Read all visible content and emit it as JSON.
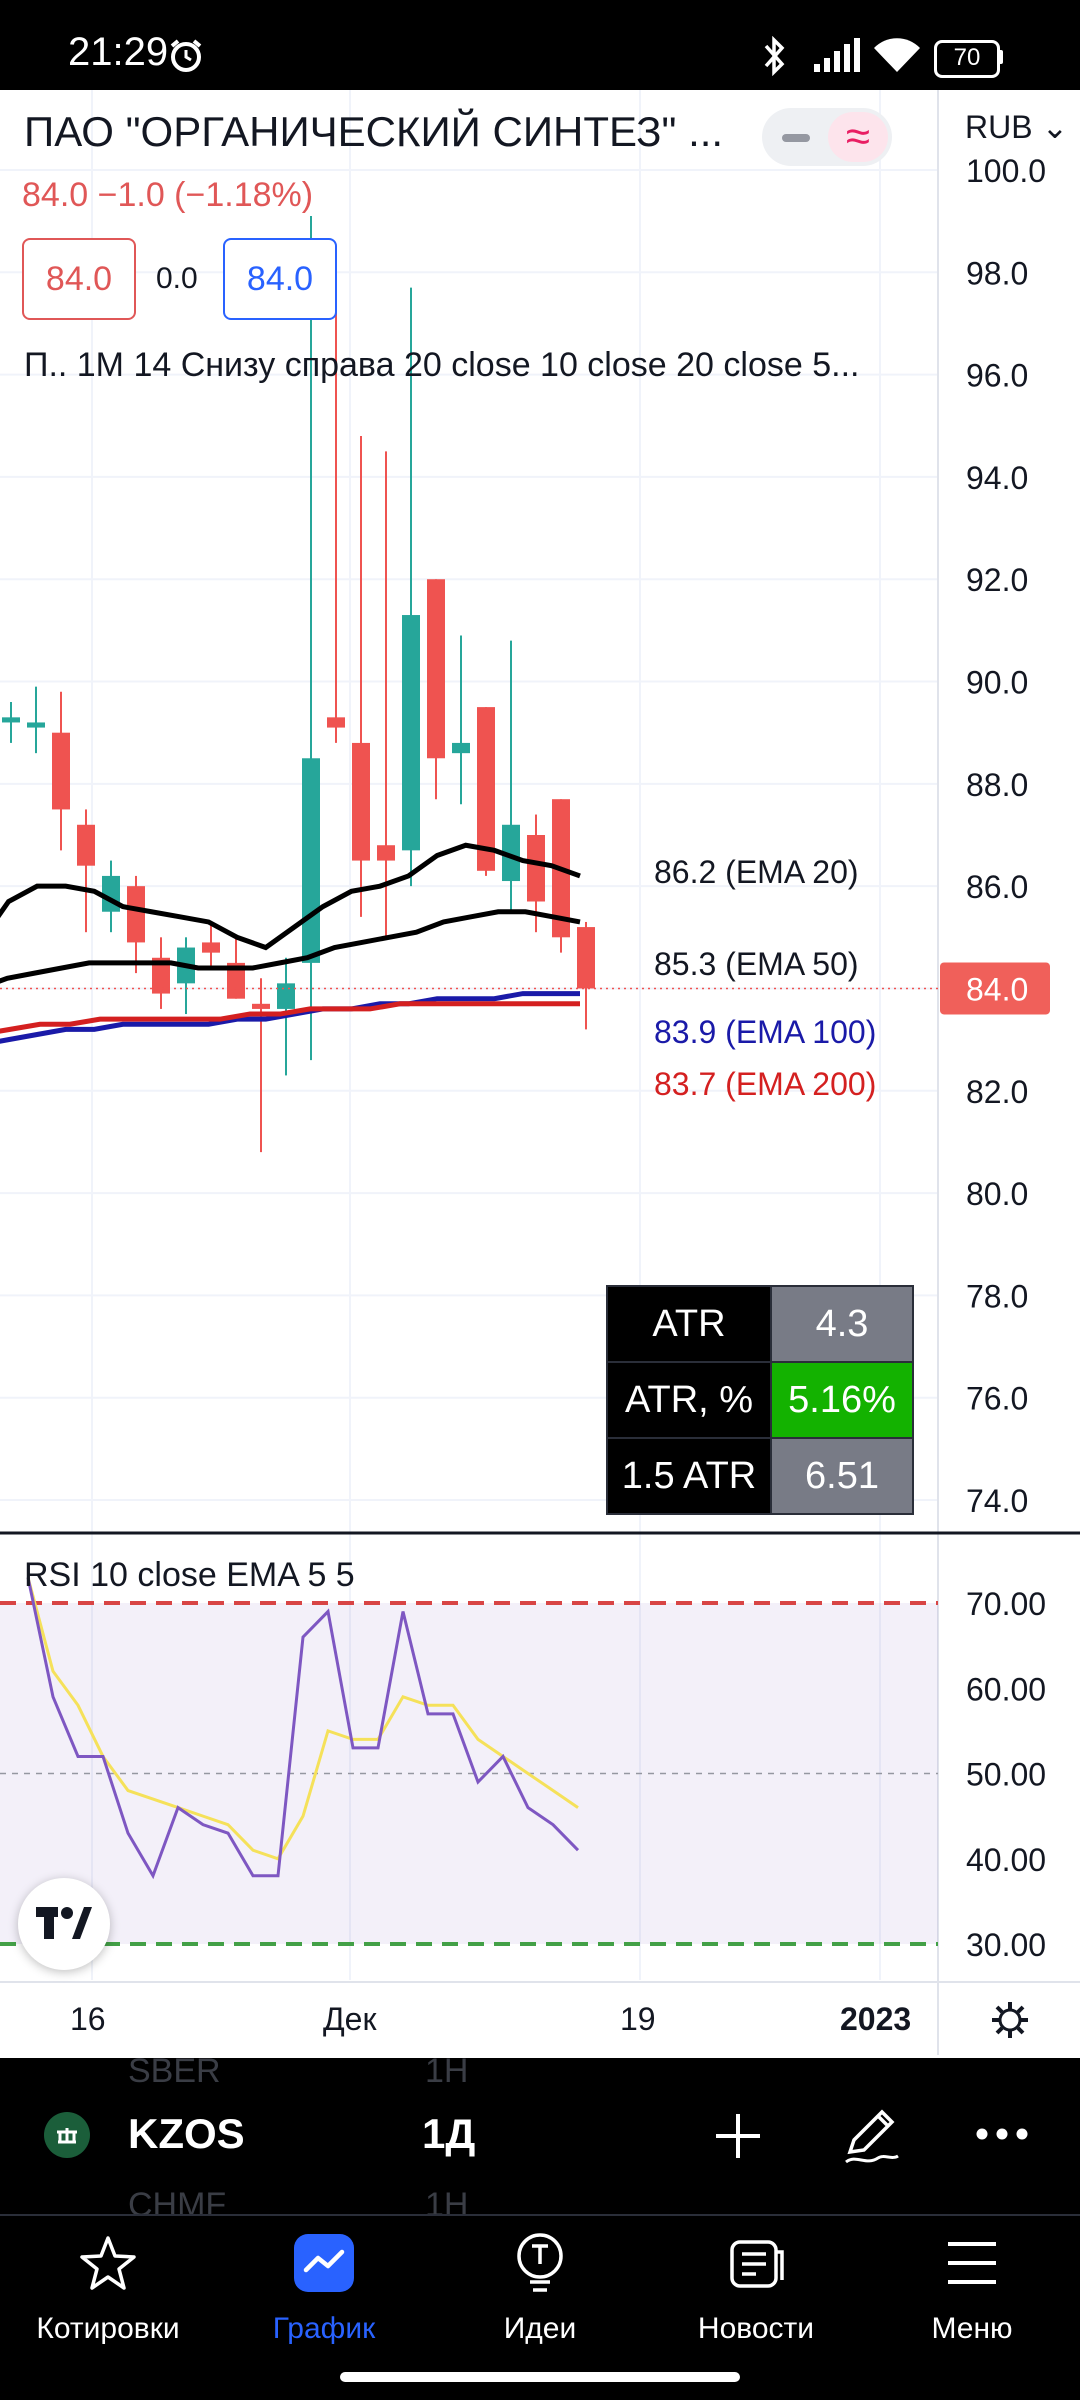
{
  "status_bar": {
    "time": "21:29",
    "battery": "70"
  },
  "header": {
    "title": "ПАО \"ОРГАНИЧЕСКИЙ СИНТЕЗ\" ...",
    "price_change": "84.0  −1.0 (−1.18%)",
    "bid": "84.0",
    "spread": "0.0",
    "ask": "84.0",
    "indicators_line": "П.. 1М 14 Снизу справа 20 close 10 close 20 close 5...",
    "currency": "RUB",
    "currency_caret": "⌄"
  },
  "price_axis": {
    "labels": [
      "100.0",
      "98.0",
      "96.0",
      "94.0",
      "92.0",
      "90.0",
      "88.0",
      "86.0",
      "84.0",
      "82.0",
      "80.0",
      "78.0",
      "76.0",
      "74.0"
    ],
    "last_price": "84.0"
  },
  "ema_labels": [
    {
      "text": "86.2 (EMA 20)",
      "color": "#131722"
    },
    {
      "text": "85.3 (EMA 50)",
      "color": "#131722"
    },
    {
      "text": "83.9 (EMA 100)",
      "color": "#1a1aa8"
    },
    {
      "text": "83.7 (EMA 200)",
      "color": "#d42020"
    }
  ],
  "atr_table": [
    {
      "key": "ATR",
      "value": "4.3",
      "highlight": false
    },
    {
      "key": "ATR, %",
      "value": "5.16%",
      "highlight": true
    },
    {
      "key": "1.5 ATR",
      "value": "6.51",
      "highlight": false
    }
  ],
  "rsi": {
    "title": "RSI 10 close EMA 5 5",
    "axis_labels": [
      "70.00",
      "60.00",
      "50.00",
      "40.00",
      "30.00"
    ],
    "rsi_values": [
      73,
      59,
      52,
      52,
      43,
      38,
      46,
      44,
      43,
      38,
      38,
      66,
      69,
      53,
      53,
      69,
      57,
      57,
      49,
      52,
      46,
      44,
      41
    ],
    "ema_values": [
      73,
      62,
      58,
      52,
      48,
      47,
      46,
      45,
      44,
      41,
      40,
      45,
      55,
      54,
      54,
      59,
      58,
      58,
      54,
      52,
      50,
      48,
      46
    ]
  },
  "time_axis": {
    "labels": [
      "16",
      "Дек",
      "19",
      "2023"
    ]
  },
  "chart_data": {
    "type": "candlestick",
    "ylim": [
      73,
      101
    ],
    "candles": [
      {
        "o": 89.2,
        "h": 89.6,
        "l": 88.8,
        "c": 89.3
      },
      {
        "o": 89.1,
        "h": 89.9,
        "l": 88.6,
        "c": 89.2
      },
      {
        "o": 89.0,
        "h": 89.8,
        "l": 86.7,
        "c": 87.5
      },
      {
        "o": 87.2,
        "h": 87.5,
        "l": 85.1,
        "c": 86.4
      },
      {
        "o": 85.5,
        "h": 86.5,
        "l": 85.1,
        "c": 86.2
      },
      {
        "o": 86.0,
        "h": 86.2,
        "l": 84.3,
        "c": 84.9
      },
      {
        "o": 84.6,
        "h": 85.0,
        "l": 83.6,
        "c": 83.9
      },
      {
        "o": 84.1,
        "h": 85.0,
        "l": 83.5,
        "c": 84.8
      },
      {
        "o": 84.9,
        "h": 85.3,
        "l": 84.4,
        "c": 84.7
      },
      {
        "o": 84.5,
        "h": 85.0,
        "l": 83.8,
        "c": 83.8
      },
      {
        "o": 83.7,
        "h": 84.2,
        "l": 80.8,
        "c": 83.6
      },
      {
        "o": 83.6,
        "h": 84.6,
        "l": 82.3,
        "c": 84.1
      },
      {
        "o": 84.5,
        "h": 99.1,
        "l": 82.6,
        "c": 88.5
      },
      {
        "o": 89.3,
        "h": 97.8,
        "l": 88.8,
        "c": 89.1
      },
      {
        "o": 88.8,
        "h": 94.8,
        "l": 85.4,
        "c": 86.5
      },
      {
        "o": 86.8,
        "h": 94.5,
        "l": 85.0,
        "c": 86.5
      },
      {
        "o": 86.7,
        "h": 97.7,
        "l": 86.0,
        "c": 91.3
      },
      {
        "o": 92.0,
        "h": 92.0,
        "l": 87.7,
        "c": 88.5
      },
      {
        "o": 88.6,
        "h": 90.9,
        "l": 87.6,
        "c": 88.8
      },
      {
        "o": 89.5,
        "h": 89.5,
        "l": 86.2,
        "c": 86.3
      },
      {
        "o": 86.1,
        "h": 90.8,
        "l": 85.5,
        "c": 87.2
      },
      {
        "o": 87.0,
        "h": 87.4,
        "l": 85.1,
        "c": 85.7
      },
      {
        "o": 87.7,
        "h": 87.7,
        "l": 84.7,
        "c": 85.0
      },
      {
        "o": 85.2,
        "h": 85.3,
        "l": 83.2,
        "c": 84.0
      }
    ],
    "series": [
      {
        "name": "EMA 20",
        "color": "#000000",
        "values": [
          84.9,
          85.7,
          86.0,
          86.0,
          85.9,
          85.6,
          85.5,
          85.4,
          85.3,
          85.0,
          84.8,
          85.2,
          85.6,
          85.9,
          86.0,
          86.2,
          86.6,
          86.8,
          86.7,
          86.5,
          86.4,
          86.2
        ]
      },
      {
        "name": "EMA 50",
        "color": "#000000",
        "values": [
          84.0,
          84.2,
          84.3,
          84.4,
          84.5,
          84.5,
          84.5,
          84.5,
          84.4,
          84.4,
          84.4,
          84.5,
          84.6,
          84.8,
          84.9,
          85.0,
          85.1,
          85.3,
          85.4,
          85.5,
          85.5,
          85.4,
          85.3
        ]
      },
      {
        "name": "EMA 100",
        "color": "#1a1aa8",
        "values": [
          82.9,
          83.0,
          83.1,
          83.2,
          83.2,
          83.3,
          83.3,
          83.3,
          83.3,
          83.4,
          83.4,
          83.5,
          83.6,
          83.6,
          83.7,
          83.7,
          83.8,
          83.8,
          83.8,
          83.9,
          83.9,
          83.9
        ]
      },
      {
        "name": "EMA 200",
        "color": "#d42020",
        "values": [
          83.1,
          83.2,
          83.3,
          83.3,
          83.4,
          83.4,
          83.4,
          83.4,
          83.4,
          83.5,
          83.5,
          83.6,
          83.6,
          83.6,
          83.7,
          83.7,
          83.7,
          83.7,
          83.7,
          83.7,
          83.7
        ]
      }
    ]
  },
  "toolbar": {
    "ticker": "KZOS",
    "interval": "1Д",
    "ghost_top_ticker": "SBER",
    "ghost_top_interval": "1Н",
    "ghost_bottom_ticker": "CHMF",
    "ghost_bottom_interval": "1Н"
  },
  "nav": [
    {
      "label": "Котировки",
      "icon": "star-icon",
      "active": false
    },
    {
      "label": "График",
      "icon": "chart-icon",
      "active": true
    },
    {
      "label": "Идеи",
      "icon": "bulb-icon",
      "active": false
    },
    {
      "label": "Новости",
      "icon": "news-icon",
      "active": false
    },
    {
      "label": "Меню",
      "icon": "menu-icon",
      "active": false
    }
  ],
  "colors": {
    "up": "#26a69a",
    "down": "#ef5350",
    "active_nav": "#2962ff",
    "price_tag": "#f0605a"
  }
}
